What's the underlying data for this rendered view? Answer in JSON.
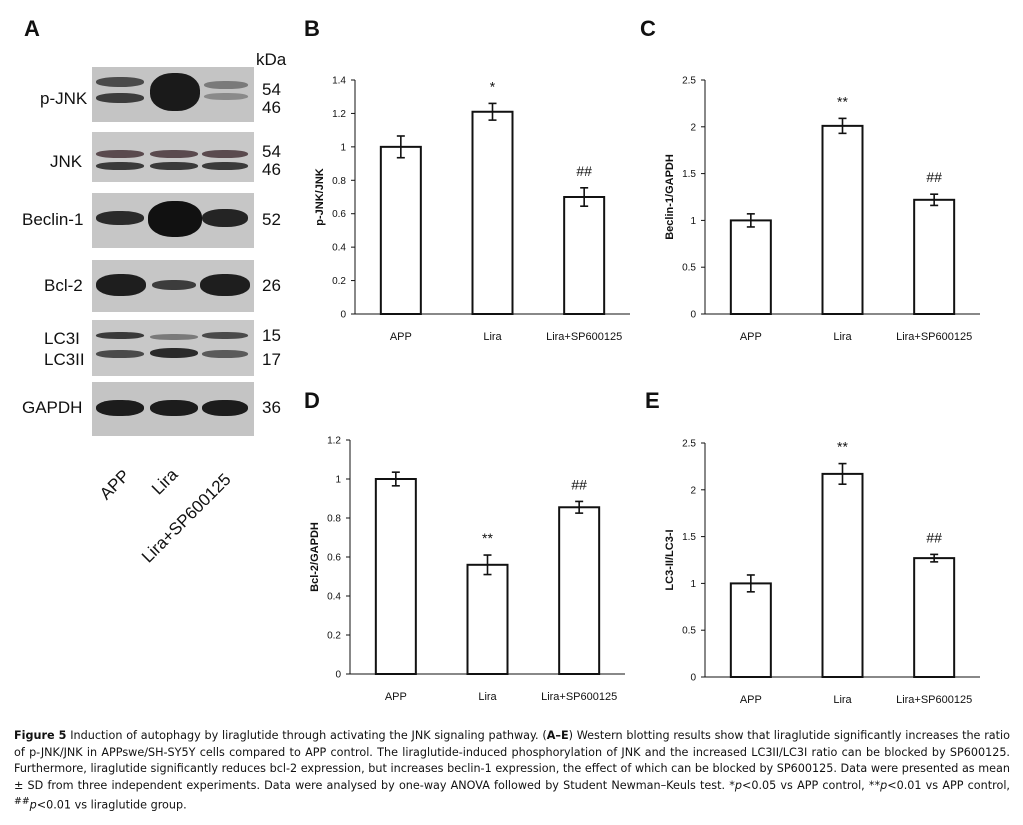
{
  "panel_a": {
    "letter": "A",
    "kda_header": "kDa",
    "rows": [
      {
        "label": "p-JNK",
        "kda": [
          "54",
          "46"
        ]
      },
      {
        "label": "JNK",
        "kda": [
          "54",
          "46"
        ]
      },
      {
        "label": "Beclin-1",
        "kda": [
          "52"
        ]
      },
      {
        "label": "Bcl-2",
        "kda": [
          "26"
        ]
      },
      {
        "label": "LC3I",
        "label2": "LC3II",
        "kda": [
          "15",
          "17"
        ]
      },
      {
        "label": "GAPDH",
        "kda": [
          "36"
        ]
      }
    ],
    "lanes": [
      "APP",
      "Lira",
      "Lira+SP600125"
    ]
  },
  "chart_data": [
    {
      "letter": "B",
      "type": "bar",
      "categories": [
        "APP",
        "Lira",
        "Lira+SP600125"
      ],
      "values": [
        1.0,
        1.21,
        0.7
      ],
      "errors": [
        0.065,
        0.05,
        0.055
      ],
      "annotations": [
        "",
        "*",
        "##"
      ],
      "ylabel": "p-JNK/JNK",
      "ylim": [
        0,
        1.4
      ],
      "yticks": [
        "0",
        "0.2",
        "0.4",
        "0.6",
        "0.8",
        "1",
        "1.2",
        "1.4"
      ]
    },
    {
      "letter": "C",
      "type": "bar",
      "categories": [
        "APP",
        "Lira",
        "Lira+SP600125"
      ],
      "values": [
        1.0,
        2.01,
        1.22
      ],
      "errors": [
        0.07,
        0.08,
        0.06
      ],
      "annotations": [
        "",
        "**",
        "##"
      ],
      "ylabel": "Beclin-1/GAPDH",
      "ylim": [
        0,
        2.5
      ],
      "yticks": [
        "0",
        "0.5",
        "1",
        "1.5",
        "2",
        "2.5"
      ]
    },
    {
      "letter": "D",
      "type": "bar",
      "categories": [
        "APP",
        "Lira",
        "Lira+SP600125"
      ],
      "values": [
        1.0,
        0.56,
        0.855
      ],
      "errors": [
        0.035,
        0.05,
        0.03
      ],
      "annotations": [
        "",
        "**",
        "##"
      ],
      "ylabel": "Bcl-2/GAPDH",
      "ylim": [
        0,
        1.2
      ],
      "yticks": [
        "0",
        "0.2",
        "0.4",
        "0.6",
        "0.8",
        "1",
        "1.2"
      ]
    },
    {
      "letter": "E",
      "type": "bar",
      "categories": [
        "APP",
        "Lira",
        "Lira+SP600125"
      ],
      "values": [
        1.0,
        2.17,
        1.27
      ],
      "errors": [
        0.09,
        0.11,
        0.04
      ],
      "annotations": [
        "",
        "**",
        "##"
      ],
      "ylabel": "LC3-II/LC3-I",
      "ylim": [
        0,
        2.5
      ],
      "yticks": [
        "0",
        "0.5",
        "1",
        "1.5",
        "2",
        "2.5"
      ]
    }
  ],
  "caption": {
    "figure_label": "Figure 5",
    "title": " Induction of autophagy by liraglutide through activating the JNK signaling pathway. (",
    "title_panels": "A–E",
    "body1": ") Western blotting results show that liraglutide significantly increases the ratio of p-JNK/JNK in APPswe/SH-SY5Y cells compared to APP control. The liraglutide-induced phosphorylation of JNK and the increased LC3II/LC3I ratio can be blocked by SP600125. Furthermore, liraglutide significantly reduces bcl-2 expression, but increases beclin-1 expression, the effect of which can be blocked by SP600125. Data were presented as mean ± SD from three independent experiments. Data were analysed by one-way ANOVA followed by Student Newman–Keuls test. *",
    "p1": "p",
    "body2": "<0.05 vs APP control, **",
    "p2": "p",
    "body3": "<0.01 vs APP control, ",
    "hash": "##",
    "p3": "p",
    "body4": "<0.01 vs liraglutide group."
  }
}
